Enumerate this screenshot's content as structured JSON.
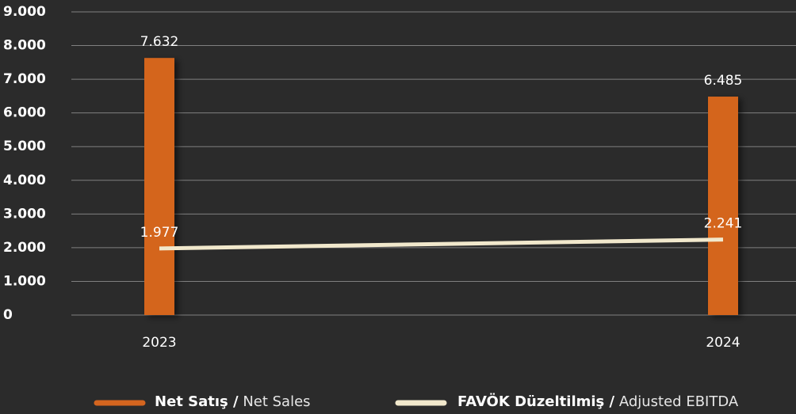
{
  "chart_data": {
    "type": "bar",
    "categories": [
      "2023",
      "2024"
    ],
    "series": [
      {
        "name": "Net Satış / Net Sales",
        "type": "bar",
        "color": "#d4651f",
        "values": [
          7632,
          6485
        ],
        "value_labels": [
          "7.632",
          "6.485"
        ]
      },
      {
        "name": "FAVÖK Düzeltilmiş / Adjusted EBITDA",
        "type": "line",
        "color": "#f1e8cc",
        "values": [
          1977,
          2241
        ],
        "value_labels": [
          "1.977",
          "2.241"
        ]
      }
    ],
    "ylim": [
      0,
      9000
    ],
    "yticks": [
      0,
      {
        "value": 1000,
        "label": "1.000"
      },
      {
        "value": 2000,
        "label": "2.000"
      },
      {
        "value": 3000,
        "label": "3.000"
      },
      {
        "value": 4000,
        "label": "4.000"
      },
      {
        "value": 5000,
        "label": "5.000"
      },
      {
        "value": 6000,
        "label": "6.000"
      },
      {
        "value": 7000,
        "label": "7.000"
      },
      {
        "value": 8000,
        "label": "8.000"
      },
      {
        "value": 9000,
        "label": "9.000"
      }
    ],
    "grid": true,
    "legend": "bottom"
  }
}
